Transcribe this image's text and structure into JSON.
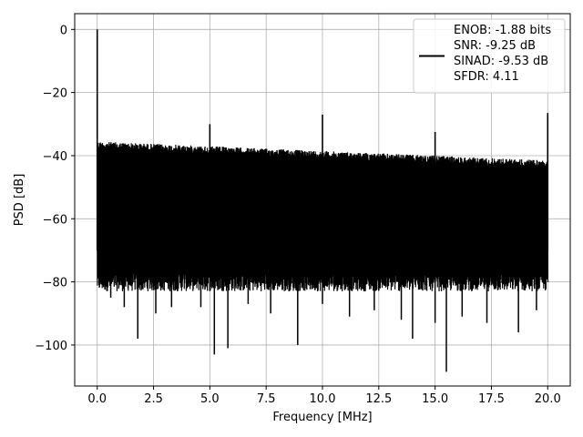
{
  "chart_data": {
    "type": "line",
    "xlabel": "Frequency [MHz]",
    "ylabel": "PSD [dB]",
    "xlim": [
      -1.0,
      21.0
    ],
    "ylim": [
      -113,
      5
    ],
    "xticks": [
      0.0,
      2.5,
      5.0,
      7.5,
      10.0,
      12.5,
      15.0,
      17.5,
      20.0
    ],
    "xtick_labels": [
      "0.0",
      "2.5",
      "5.0",
      "7.5",
      "10.0",
      "12.5",
      "15.0",
      "17.5",
      "20.0"
    ],
    "yticks": [
      0,
      -20,
      -40,
      -60,
      -80,
      -100
    ],
    "ytick_labels": [
      "0",
      "−20",
      "−40",
      "−60",
      "−80",
      "−100"
    ],
    "grid": true,
    "legend_position": "top-right",
    "legend": [
      "ENOB: -1.88 bits",
      "SNR: -9.25 dB",
      "SINAD: -9.53 dB",
      "SFDR: 4.11"
    ],
    "series": [
      {
        "color": "#000000",
        "noise_floor": {
          "x_range": [
            0.0,
            20.0
          ],
          "upper_envelope_start": -35.5,
          "upper_envelope_end": -41.5,
          "lower_typical": -80,
          "median": -60
        },
        "spikes": [
          {
            "x": 0.0,
            "y": 0.0
          },
          {
            "x": 5.0,
            "y": -30.0
          },
          {
            "x": 10.0,
            "y": -27.0
          },
          {
            "x": 15.0,
            "y": -32.5
          },
          {
            "x": 20.0,
            "y": -26.5
          }
        ],
        "dips": [
          {
            "x": 0.6,
            "y": -85
          },
          {
            "x": 1.2,
            "y": -88
          },
          {
            "x": 1.8,
            "y": -98
          },
          {
            "x": 2.6,
            "y": -90
          },
          {
            "x": 3.3,
            "y": -88
          },
          {
            "x": 4.6,
            "y": -88
          },
          {
            "x": 5.2,
            "y": -103
          },
          {
            "x": 5.8,
            "y": -101
          },
          {
            "x": 6.7,
            "y": -87
          },
          {
            "x": 7.7,
            "y": -90
          },
          {
            "x": 8.9,
            "y": -100
          },
          {
            "x": 10.0,
            "y": -87
          },
          {
            "x": 11.2,
            "y": -91
          },
          {
            "x": 12.3,
            "y": -89
          },
          {
            "x": 13.5,
            "y": -92
          },
          {
            "x": 14.0,
            "y": -98
          },
          {
            "x": 15.0,
            "y": -93
          },
          {
            "x": 15.5,
            "y": -108.5
          },
          {
            "x": 16.2,
            "y": -91
          },
          {
            "x": 17.3,
            "y": -93
          },
          {
            "x": 18.7,
            "y": -96
          },
          {
            "x": 19.5,
            "y": -89
          }
        ]
      }
    ]
  }
}
